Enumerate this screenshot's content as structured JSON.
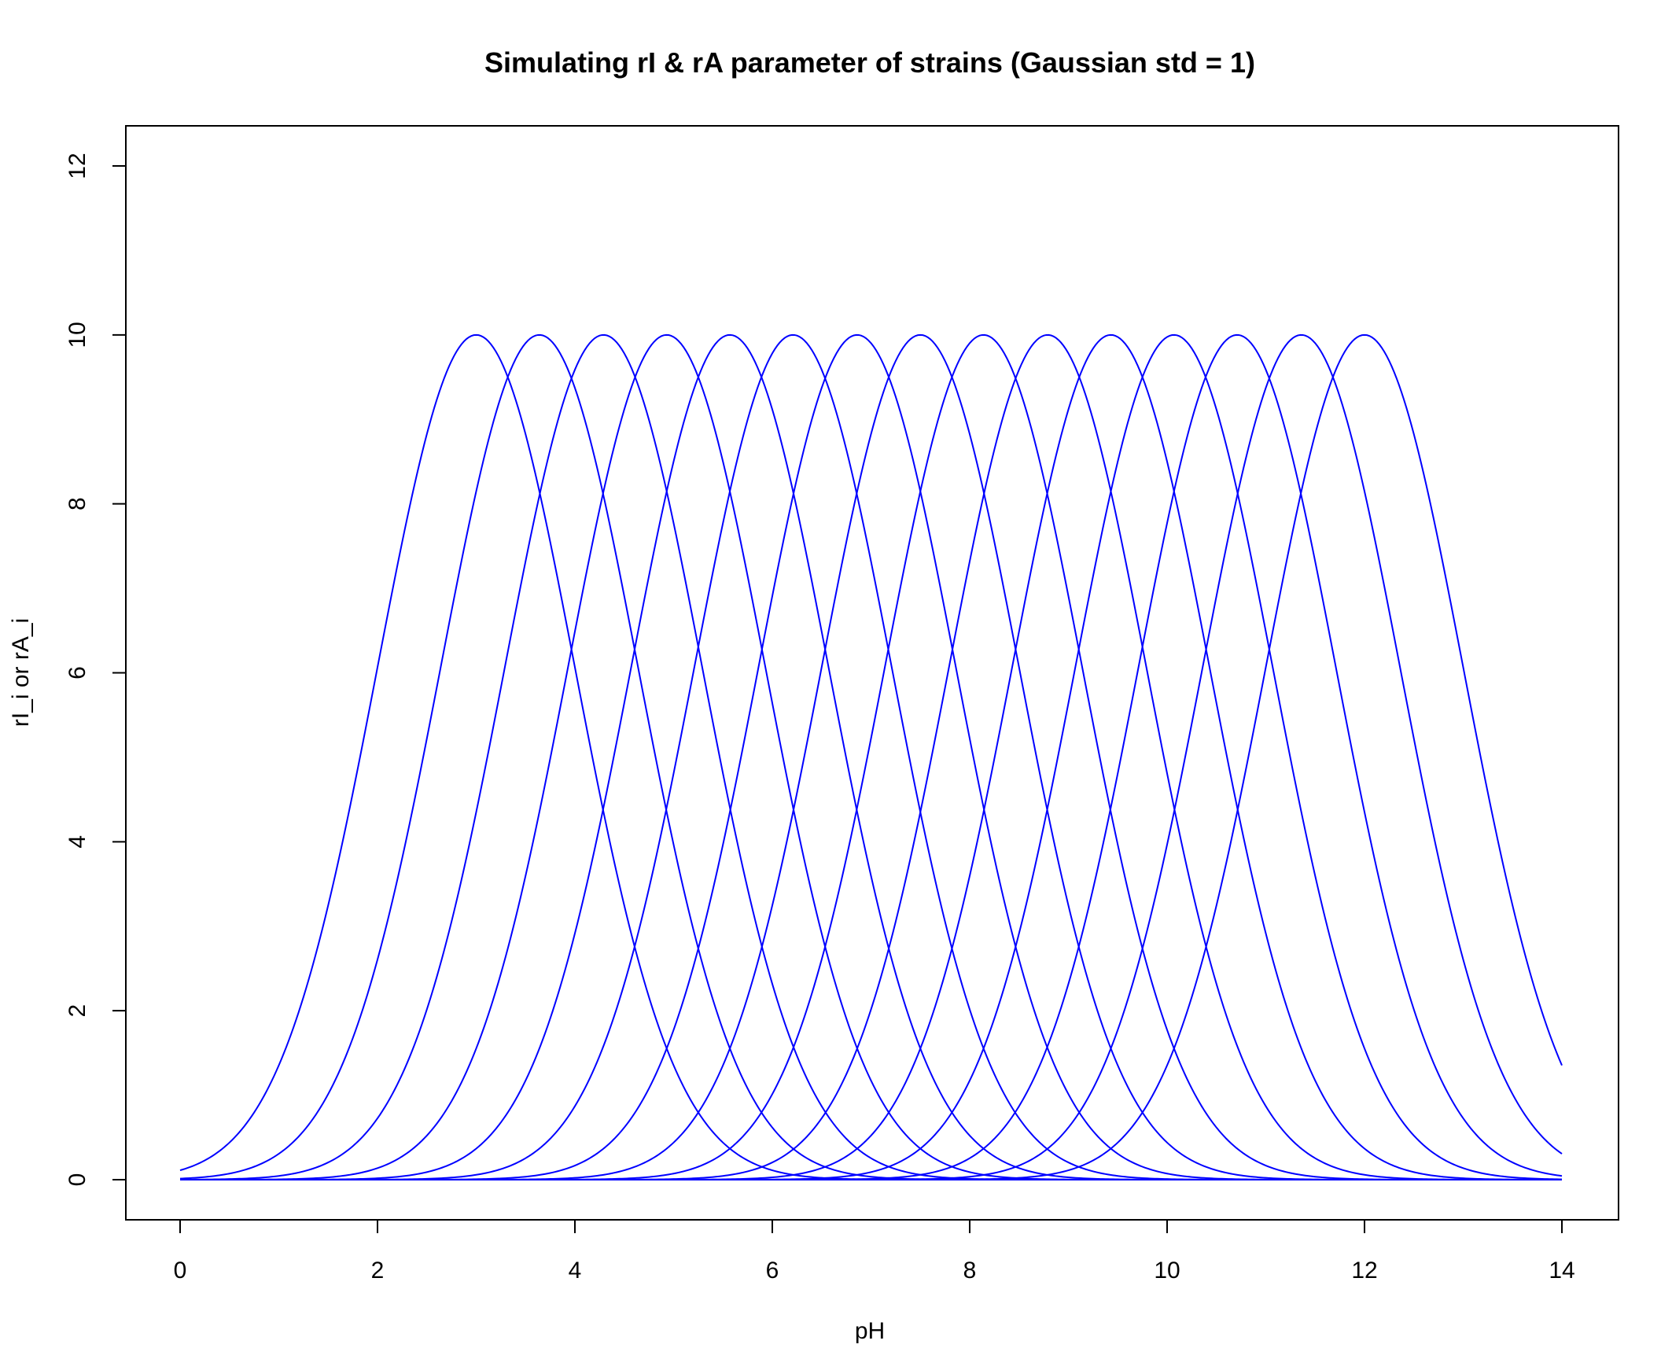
{
  "chart_data": {
    "type": "line",
    "title": "Simulating rI & rA parameter of strains (Gaussian std = 1)",
    "xlabel": "pH",
    "ylabel": "rI_i or rA_i",
    "xlim": [
      0,
      14
    ],
    "ylim": [
      0,
      12
    ],
    "x_ticks": [
      0,
      2,
      4,
      6,
      8,
      10,
      12,
      14
    ],
    "y_ticks": [
      0,
      2,
      4,
      6,
      8,
      10,
      12
    ],
    "grid": false,
    "legend": "none",
    "line_color": "#0000ff",
    "curve": "gaussian",
    "amplitude": 10,
    "std": 1,
    "series": [
      {
        "peak_x": 3.0,
        "peak_y": 10
      },
      {
        "peak_x": 3.64,
        "peak_y": 10
      },
      {
        "peak_x": 4.29,
        "peak_y": 10
      },
      {
        "peak_x": 4.93,
        "peak_y": 10
      },
      {
        "peak_x": 5.57,
        "peak_y": 10
      },
      {
        "peak_x": 6.21,
        "peak_y": 10
      },
      {
        "peak_x": 6.86,
        "peak_y": 10
      },
      {
        "peak_x": 7.5,
        "peak_y": 10
      },
      {
        "peak_x": 8.14,
        "peak_y": 10
      },
      {
        "peak_x": 8.79,
        "peak_y": 10
      },
      {
        "peak_x": 9.43,
        "peak_y": 10
      },
      {
        "peak_x": 10.07,
        "peak_y": 10
      },
      {
        "peak_x": 10.71,
        "peak_y": 10
      },
      {
        "peak_x": 11.36,
        "peak_y": 10
      },
      {
        "peak_x": 12.0,
        "peak_y": 10
      }
    ]
  }
}
